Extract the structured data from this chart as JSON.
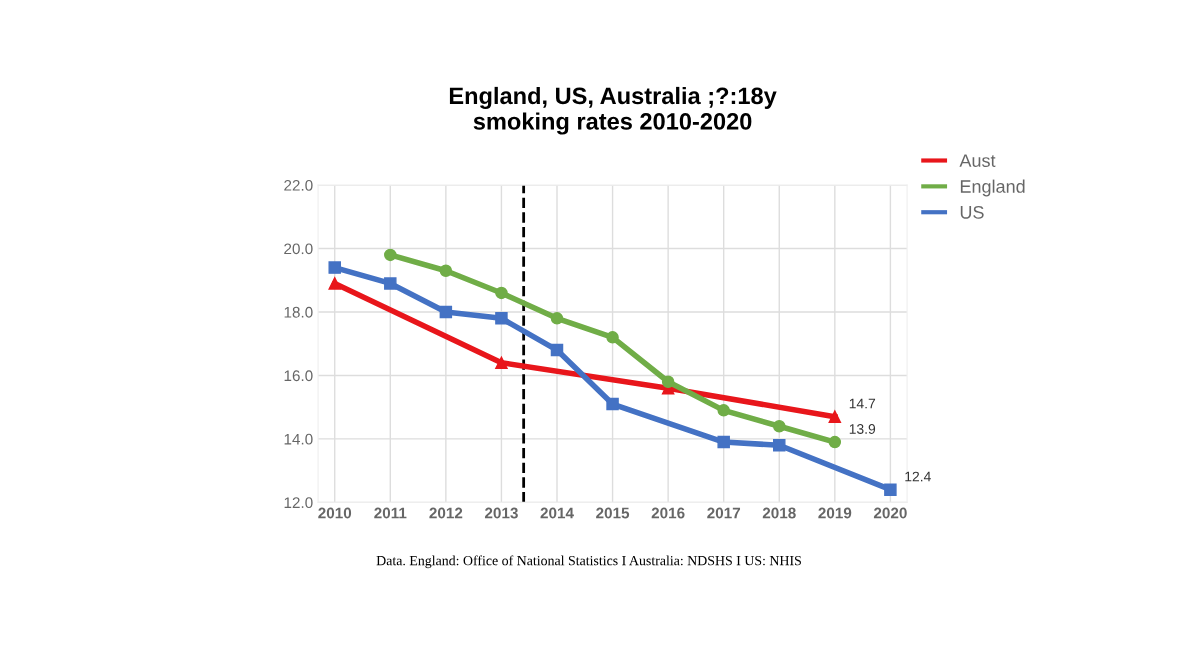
{
  "chart_data": {
    "type": "line",
    "title": "England, US, Australia ;?:18y\nsmoking rates 2010-2020",
    "x": [
      2010,
      2011,
      2012,
      2013,
      2014,
      2015,
      2016,
      2017,
      2018,
      2019,
      2020
    ],
    "series": [
      {
        "name": "Aust",
        "color": "#e8161b",
        "marker": "triangle",
        "values": [
          18.9,
          null,
          null,
          16.4,
          null,
          null,
          15.6,
          null,
          null,
          14.7,
          null
        ],
        "value_labels": [
          null,
          null,
          null,
          null,
          null,
          null,
          null,
          null,
          null,
          "14.7",
          null
        ]
      },
      {
        "name": "England",
        "color": "#70ad47",
        "marker": "circle",
        "values": [
          null,
          19.8,
          19.3,
          18.6,
          17.8,
          17.2,
          15.8,
          14.9,
          14.4,
          13.9,
          null
        ],
        "value_labels": [
          null,
          null,
          null,
          null,
          null,
          null,
          null,
          null,
          null,
          "13.9",
          null
        ]
      },
      {
        "name": "US",
        "color": "#4472c4",
        "marker": "square",
        "values": [
          19.4,
          18.9,
          18.0,
          17.8,
          16.8,
          15.1,
          null,
          13.9,
          13.8,
          null,
          12.4
        ],
        "value_labels": [
          null,
          null,
          null,
          null,
          null,
          null,
          null,
          null,
          null,
          null,
          "12.4"
        ]
      }
    ],
    "xlim": [
      2009.7,
      2020.3
    ],
    "xticks": [
      2010,
      2011,
      2012,
      2013,
      2014,
      2015,
      2016,
      2017,
      2018,
      2019,
      2020
    ],
    "ylim": [
      12.0,
      22.0
    ],
    "yticks": [
      {
        "value": 12.0,
        "label": "12.0"
      },
      {
        "value": 14.0,
        "label": "14.0"
      },
      {
        "value": 16.0,
        "label": "16.0"
      },
      {
        "value": 18.0,
        "label": "18.0"
      },
      {
        "value": 20.0,
        "label": "20.0"
      },
      {
        "value": 22.0,
        "label": "22.0"
      }
    ],
    "ref_lines": [
      {
        "axis": "x",
        "value": 2013.4,
        "label": null,
        "color": "#000000",
        "line_style": "dashed"
      }
    ],
    "grid": true,
    "legend": "top right",
    "annotations": [
      "Data. England: Office of National Statistics I Australia: NDSHS I US: NHIS"
    ]
  }
}
